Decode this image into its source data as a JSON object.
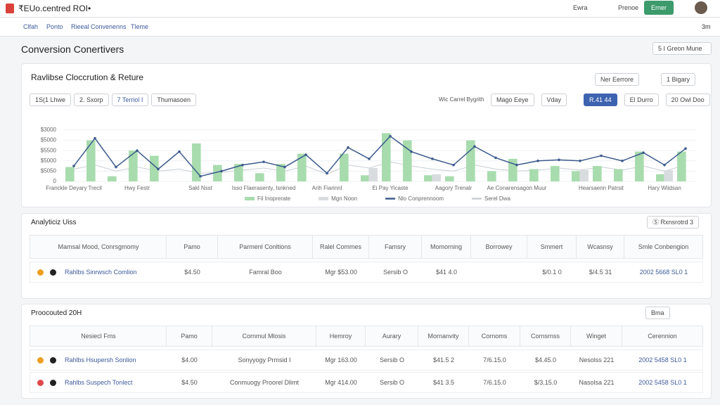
{
  "header": {
    "title": "₹EUo.centred ROI•",
    "buttons": [
      "Ewra",
      "Prenoe",
      "Erner"
    ]
  },
  "nav": {
    "links": [
      "Clfah",
      "Ponto",
      "Rieeal Convenenns",
      "Tleme"
    ],
    "user": "3m"
  },
  "page": {
    "title": "Conversion Conertivers",
    "dropdown": "5 I Greon Mune"
  },
  "panel": {
    "title": "Ravlibse Cloccrution & Reture",
    "buttons": [
      "Ner Eerrore",
      "1 Bigary"
    ],
    "tabs": [
      "1S(1 Lhwe",
      "2. Sxorp",
      "7 Terriol I",
      "Thumasoen"
    ],
    "filter_label": "Wic Carrel Bygrith",
    "filters": [
      "Mago Eeye",
      "Vday",
      "R.41 44",
      "El Durro",
      "20 Owl Doo"
    ]
  },
  "chart_data": {
    "type": "bar-line",
    "categories": [
      "Franckle Deyary Trecil",
      null,
      null,
      "Hwy Festr",
      null,
      null,
      "Sakl Nsst",
      null,
      null,
      "Isso Flaerasenty, Isnkned",
      null,
      null,
      "Arih Fiarinnl",
      null,
      null,
      "Ei Pay Yicaste",
      null,
      null,
      "Aagory Trenalr",
      null,
      null,
      "Ae Conarensagon Muur",
      null,
      null,
      null,
      "Hearsaenn Patrsit",
      null,
      null,
      "Hary Wiidsan",
      null
    ],
    "ylim": [
      0,
      5
    ],
    "yticks": [
      {
        "value": 0,
        "label": "0"
      },
      {
        "value": 1,
        "label": "$5050"
      },
      {
        "value": 2,
        "label": "$5000"
      },
      {
        "value": 3,
        "label": "$5500"
      },
      {
        "value": 4,
        "label": "$5000"
      },
      {
        "value": 5,
        "label": "$3000"
      }
    ],
    "series": [
      {
        "name": "Fil Inoprerate",
        "type": "bar",
        "color": "#a8dcae",
        "values": [
          1.4,
          4.0,
          0.5,
          3.0,
          2.5,
          null,
          3.7,
          1.6,
          1.7,
          0.8,
          1.7,
          2.7,
          null,
          2.7,
          0.6,
          4.7,
          4.0,
          0.6,
          0.5,
          4.0,
          1.0,
          2.2,
          1.2,
          1.5,
          1.0,
          1.5,
          1.2,
          2.9,
          0.7,
          2.9
        ]
      },
      {
        "name": "Mgn Noon",
        "type": "bar",
        "color": "#d9dcdf",
        "values": [
          null,
          null,
          null,
          null,
          null,
          null,
          null,
          null,
          null,
          null,
          null,
          null,
          null,
          null,
          1.3,
          null,
          null,
          0.7,
          null,
          null,
          null,
          null,
          null,
          null,
          1.1,
          null,
          null,
          null,
          1.1,
          null
        ]
      },
      {
        "name": "Nlo Conprennoom",
        "type": "line",
        "color": "#3c5a8c",
        "values": [
          1.5,
          4.2,
          1.4,
          3.0,
          1.2,
          2.9,
          0.5,
          1.0,
          1.6,
          1.9,
          1.4,
          2.6,
          0.8,
          3.3,
          2.2,
          4.4,
          2.9,
          2.2,
          1.6,
          3.4,
          2.3,
          1.6,
          2.0,
          2.1,
          2.0,
          2.5,
          2.0,
          2.8,
          1.6,
          3.2
        ]
      },
      {
        "name": "Serel Dwa",
        "type": "line",
        "color": "#c9ced4",
        "values": [
          1.2,
          1.6,
          1.0,
          1.4,
          1.0,
          1.2,
          0.8,
          0.9,
          1.1,
          1.3,
          1.0,
          1.5,
          0.7,
          1.6,
          1.3,
          1.9,
          1.5,
          1.2,
          1.0,
          1.6,
          1.2,
          1.0,
          1.1,
          1.3,
          1.1,
          1.4,
          1.1,
          1.5,
          1.0,
          1.6
        ]
      }
    ]
  },
  "table1": {
    "title": "Analyticiz Uiss",
    "button": "Ⓢ Rxnsrotrd 3",
    "columns": [
      "Mamsal Mood, Conrsgmomy",
      "Pamo",
      "Parmenl Conltions",
      "Ralel Commes",
      "Famsry",
      "Momorning",
      "Borrowey",
      "Smmert",
      "Wcasnsy",
      "Smle Conbengion"
    ],
    "rows": [
      [
        "Rahlbs Sinrwsch Comlion",
        "$4.50",
        "Famral Boo",
        "Mgr $53.00",
        "Sersib O",
        "$41 4.0",
        null,
        "$/0.1 0",
        "$/4.5 31",
        "2002 5668 SL0 1"
      ]
    ]
  },
  "table2": {
    "title": "Proocouted 20H",
    "button": "Bma",
    "columns": [
      "Nesiecl Fms",
      "Pamo",
      "Cornmul Mlosis",
      "Hemroy",
      "Aurary",
      "Mornanvity",
      "Cornoms",
      "Cornsrnss",
      "Winget",
      "Cerennion"
    ],
    "rows": [
      [
        "Rahlbs Hsupersh Sonlion",
        "$4.00",
        "Sonyyogy Prmsid I",
        "Mgr 163.00",
        "Sersib O",
        "$41.5 2",
        "7/6.15.0",
        "$4.45.0",
        "Nesolss 221",
        "2002 5458 SL0 1"
      ],
      [
        "Rahlbs Suspech Tonlect",
        "$4.50",
        "Conmuogy Proorel Dlimt",
        "Mgr 414.00",
        "Sersib O",
        "$41 3.5",
        "7/6.15.0",
        "$/3.15.0",
        "Nasolsa 221",
        "2002 5458 SL0 1"
      ]
    ]
  }
}
